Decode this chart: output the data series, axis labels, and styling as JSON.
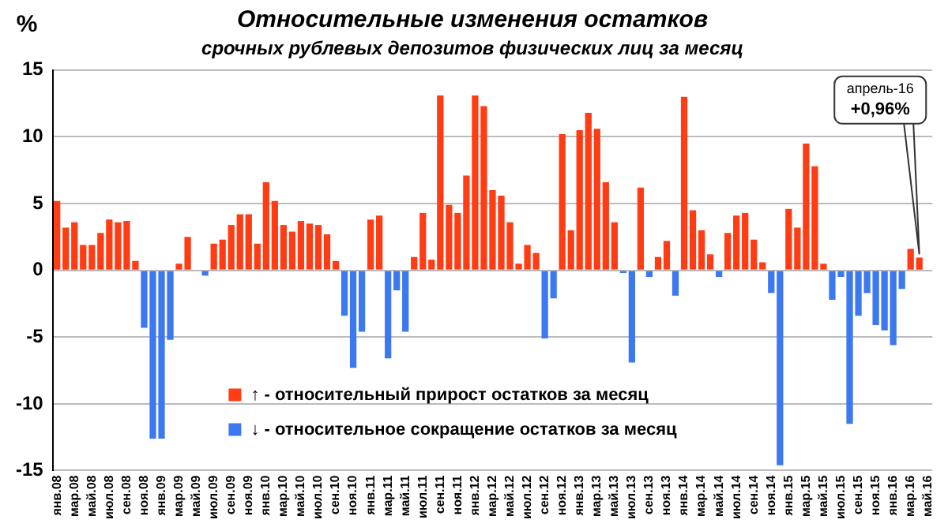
{
  "chart_data": {
    "type": "bar",
    "title": "Относительные изменения остатков",
    "subtitle": "срочных рублевых депозитов физических лиц за месяц",
    "ylabel": "%",
    "categories": [
      "янв.08",
      null,
      "мар.08",
      null,
      "май.08",
      null,
      "июл.08",
      null,
      "сен.08",
      null,
      "ноя.08",
      null,
      "янв.09",
      null,
      "мар.09",
      null,
      "май.09",
      null,
      "июл.09",
      null,
      "сен.09",
      null,
      "ноя.09",
      null,
      "янв.10",
      null,
      "мар.10",
      null,
      "май.10",
      null,
      "июл.10",
      null,
      "сен.10",
      null,
      "ноя.10",
      null,
      "янв.11",
      null,
      "мар.11",
      null,
      "май.11",
      null,
      "июл.11",
      null,
      "сен.11",
      null,
      "ноя.11",
      null,
      "янв.12",
      null,
      "мар.12",
      null,
      "май.12",
      null,
      "июл.12",
      null,
      "сен.12",
      null,
      "ноя.12",
      null,
      "янв.13",
      null,
      "мар.13",
      null,
      "май.13",
      null,
      "июл.13",
      null,
      "сен.13",
      null,
      "ноя.13",
      null,
      "янв.14",
      null,
      "мар.14",
      null,
      "май.14",
      null,
      "июл.14",
      null,
      "сен.14",
      null,
      "ноя.14",
      null,
      "янв.15",
      null,
      "мар.15",
      null,
      "май.15",
      null,
      "июл.15",
      null,
      "сен.15",
      null,
      "ноя.15",
      null,
      "янв.16",
      null,
      "мар.16",
      null,
      "май.16"
    ],
    "series": [
      {
        "name": "↑ - относительный прирост остатков за месяц",
        "color": "#ff3c14",
        "values": [
          5.2,
          3.2,
          3.6,
          1.9,
          1.9,
          2.8,
          3.8,
          3.6,
          3.7,
          0.7,
          null,
          null,
          null,
          null,
          0.5,
          2.5,
          0,
          null,
          2.0,
          2.3,
          3.4,
          4.2,
          4.2,
          2.0,
          6.6,
          5.2,
          3.4,
          2.9,
          3.7,
          3.5,
          3.4,
          2.7,
          0.7,
          null,
          null,
          null,
          3.8,
          4.1,
          null,
          null,
          null,
          1.0,
          4.3,
          0.8,
          13.1,
          4.9,
          4.3,
          7.1,
          13.1,
          12.3,
          6.0,
          5.6,
          3.6,
          0.5,
          1.9,
          1.3,
          null,
          null,
          10.2,
          3.0,
          10.5,
          11.8,
          10.6,
          6.6,
          3.6,
          null,
          null,
          6.2,
          null,
          1.0,
          2.2,
          null,
          13.0,
          4.5,
          3.0,
          1.2,
          null,
          2.8,
          4.1,
          4.3,
          2.3,
          0.6,
          null,
          null,
          4.6,
          3.2,
          9.5,
          7.8,
          0.5,
          null,
          null,
          null,
          null,
          null,
          null,
          null,
          null,
          null,
          1.6,
          0.96,
          null
        ]
      },
      {
        "name": "↓ - относительное сокращение остатков за месяц",
        "color": "#3c78f0",
        "values": [
          null,
          null,
          null,
          null,
          null,
          null,
          null,
          null,
          null,
          null,
          -4.3,
          -12.6,
          -12.6,
          -5.2,
          null,
          null,
          null,
          -0.4,
          null,
          null,
          null,
          null,
          null,
          null,
          null,
          null,
          null,
          null,
          null,
          null,
          null,
          null,
          null,
          -3.4,
          -7.3,
          -4.6,
          null,
          null,
          -6.6,
          -1.5,
          -4.6,
          null,
          null,
          null,
          null,
          null,
          null,
          null,
          null,
          null,
          null,
          null,
          null,
          null,
          null,
          null,
          -5.1,
          -2.1,
          null,
          null,
          null,
          null,
          null,
          null,
          null,
          -0.2,
          -6.9,
          null,
          -0.5,
          null,
          null,
          -1.9,
          null,
          null,
          null,
          null,
          -0.5,
          null,
          null,
          null,
          null,
          null,
          -1.7,
          -14.6,
          null,
          null,
          null,
          null,
          null,
          -2.2,
          -0.5,
          -11.5,
          -3.4,
          -1.7,
          -4.1,
          -4.5,
          -5.6,
          -1.4,
          null,
          null,
          null
        ]
      }
    ],
    "stacked": true,
    "ylim": [
      -15,
      15
    ],
    "yticks": [
      -15,
      -10,
      -5,
      0,
      5,
      10,
      15
    ],
    "grid": "y",
    "legend": "bottom",
    "annotations": [
      "апрель-16\n+0,96%"
    ]
  }
}
